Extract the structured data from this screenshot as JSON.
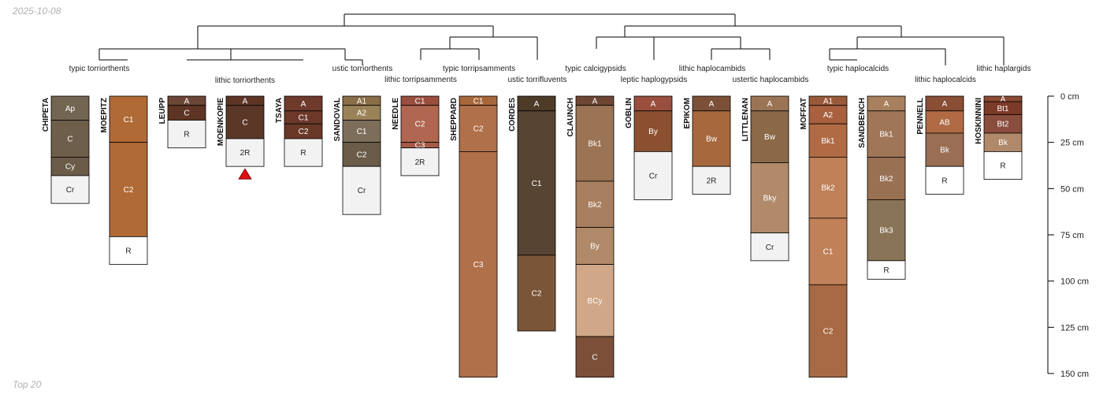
{
  "date_label": "2025-10-08",
  "footer_label": "Top 20",
  "chart_data": {
    "type": "soil-profile-sketch",
    "depth_axis": {
      "unit": "cm",
      "max": 150,
      "ticks": [
        {
          "value": 0,
          "label": "0 cm"
        },
        {
          "value": 25,
          "label": "25 cm"
        },
        {
          "value": 50,
          "label": "50 cm"
        },
        {
          "value": 75,
          "label": "75 cm"
        },
        {
          "value": 100,
          "label": "100 cm"
        },
        {
          "value": 125,
          "label": "125 cm"
        },
        {
          "value": 150,
          "label": "150 cm"
        }
      ]
    },
    "taxa": [
      "typic torriorthents",
      "lithic torriorthents",
      "ustic torriorthents",
      "lithic torripsamments",
      "typic torripsamments",
      "ustic torrifluvents",
      "typic calcigypsids",
      "leptic haplogypsids",
      "lithic haplocambids",
      "ustertic haplocambids",
      "typic haplocalcids",
      "lithic haplocalcids",
      "lithic haplargids"
    ],
    "profiles": [
      {
        "name": "CHIPETA",
        "horizons": [
          {
            "name": "Ap",
            "top": 0,
            "bottom": 13,
            "color": "#726551"
          },
          {
            "name": "C",
            "top": 13,
            "bottom": 33,
            "color": "#6e5f4a"
          },
          {
            "name": "Cy",
            "top": 33,
            "bottom": 43,
            "color": "#6a5c48"
          },
          {
            "name": "Cr",
            "top": 43,
            "bottom": 58,
            "color": "#f2f2f2"
          }
        ]
      },
      {
        "name": "MOEPITZ",
        "horizons": [
          {
            "name": "C1",
            "top": 0,
            "bottom": 25,
            "color": "#b06a35"
          },
          {
            "name": "C2",
            "top": 25,
            "bottom": 76,
            "color": "#b06a35"
          },
          {
            "name": "R",
            "top": 76,
            "bottom": 91,
            "color": "#ffffff"
          }
        ]
      },
      {
        "name": "LEUPP",
        "horizons": [
          {
            "name": "A",
            "top": 0,
            "bottom": 5,
            "color": "#6c4636"
          },
          {
            "name": "C",
            "top": 5,
            "bottom": 13,
            "color": "#5e3525"
          },
          {
            "name": "R",
            "top": 13,
            "bottom": 28,
            "color": "#f2f2f2"
          }
        ]
      },
      {
        "name": "MOENKOPIE",
        "horizons": [
          {
            "name": "A",
            "top": 0,
            "bottom": 5,
            "color": "#5e3525"
          },
          {
            "name": "C",
            "top": 5,
            "bottom": 23,
            "color": "#5b3727"
          },
          {
            "name": "2R",
            "top": 23,
            "bottom": 38,
            "color": "#f2f2f2"
          }
        ]
      },
      {
        "name": "TSAYA",
        "horizons": [
          {
            "name": "A",
            "top": 0,
            "bottom": 8,
            "color": "#6e3a2c"
          },
          {
            "name": "C1",
            "top": 8,
            "bottom": 15,
            "color": "#6c3829"
          },
          {
            "name": "C2",
            "top": 15,
            "bottom": 23,
            "color": "#6a3827"
          },
          {
            "name": "R",
            "top": 23,
            "bottom": 38,
            "color": "#f2f2f2"
          }
        ]
      },
      {
        "name": "SANDOVAL",
        "horizons": [
          {
            "name": "A1",
            "top": 0,
            "bottom": 5,
            "color": "#8a6e48"
          },
          {
            "name": "A2",
            "top": 5,
            "bottom": 13,
            "color": "#9a8258"
          },
          {
            "name": "C1",
            "top": 13,
            "bottom": 25,
            "color": "#7c6e5a"
          },
          {
            "name": "C2",
            "top": 25,
            "bottom": 38,
            "color": "#6a5c48"
          },
          {
            "name": "Cr",
            "top": 38,
            "bottom": 64,
            "color": "#f2f2f2"
          }
        ]
      },
      {
        "name": "NEEDLE",
        "horizons": [
          {
            "name": "C1",
            "top": 0,
            "bottom": 5,
            "color": "#9a4e3e"
          },
          {
            "name": "C2",
            "top": 5,
            "bottom": 25,
            "color": "#b06650"
          },
          {
            "name": "C3",
            "top": 25,
            "bottom": 28,
            "color": "#a65a48"
          },
          {
            "name": "2R",
            "top": 28,
            "bottom": 43,
            "color": "#f2f2f2"
          }
        ]
      },
      {
        "name": "SHEPPARD",
        "horizons": [
          {
            "name": "C1",
            "top": 0,
            "bottom": 5,
            "color": "#a8673a"
          },
          {
            "name": "C2",
            "top": 5,
            "bottom": 30,
            "color": "#b0704a"
          },
          {
            "name": "C3",
            "top": 30,
            "bottom": 152,
            "color": "#b0704a"
          }
        ]
      },
      {
        "name": "CORDES",
        "horizons": [
          {
            "name": "A",
            "top": 0,
            "bottom": 8,
            "color": "#4d3a27"
          },
          {
            "name": "C1",
            "top": 8,
            "bottom": 86,
            "color": "#574433"
          },
          {
            "name": "C2",
            "top": 86,
            "bottom": 127,
            "color": "#7a5538"
          }
        ]
      },
      {
        "name": "CLAUNCH",
        "horizons": [
          {
            "name": "A",
            "top": 0,
            "bottom": 5,
            "color": "#6e4634"
          },
          {
            "name": "Bk1",
            "top": 5,
            "bottom": 46,
            "color": "#9a7454"
          },
          {
            "name": "Bk2",
            "top": 46,
            "bottom": 71,
            "color": "#a87f5f"
          },
          {
            "name": "By",
            "top": 71,
            "bottom": 91,
            "color": "#b08a68"
          },
          {
            "name": "BCy",
            "top": 91,
            "bottom": 130,
            "color": "#d0a888"
          },
          {
            "name": "C",
            "top": 130,
            "bottom": 152,
            "color": "#7c5038"
          }
        ]
      },
      {
        "name": "GOBLIN",
        "horizons": [
          {
            "name": "A",
            "top": 0,
            "bottom": 8,
            "color": "#9a4e3e"
          },
          {
            "name": "By",
            "top": 8,
            "bottom": 30,
            "color": "#8a5030"
          },
          {
            "name": "Cr",
            "top": 30,
            "bottom": 56,
            "color": "#f2f2f2"
          }
        ]
      },
      {
        "name": "EPIKOM",
        "horizons": [
          {
            "name": "A",
            "top": 0,
            "bottom": 8,
            "color": "#7c5038"
          },
          {
            "name": "Bw",
            "top": 8,
            "bottom": 38,
            "color": "#a8683e"
          },
          {
            "name": "2R",
            "top": 38,
            "bottom": 53,
            "color": "#f2f2f2"
          }
        ]
      },
      {
        "name": "LITTLENAN",
        "horizons": [
          {
            "name": "A",
            "top": 0,
            "bottom": 8,
            "color": "#9a7454"
          },
          {
            "name": "Bw",
            "top": 8,
            "bottom": 36,
            "color": "#8a6848"
          },
          {
            "name": "Bky",
            "top": 36,
            "bottom": 74,
            "color": "#b08a6a"
          },
          {
            "name": "Cr",
            "top": 74,
            "bottom": 89,
            "color": "#f2f2f2"
          }
        ]
      },
      {
        "name": "MOFFAT",
        "horizons": [
          {
            "name": "A1",
            "top": 0,
            "bottom": 5,
            "color": "#9a5a3a"
          },
          {
            "name": "A2",
            "top": 5,
            "bottom": 15,
            "color": "#a8603e"
          },
          {
            "name": "Bk1",
            "top": 15,
            "bottom": 33,
            "color": "#b06a44"
          },
          {
            "name": "Bk2",
            "top": 33,
            "bottom": 66,
            "color": "#c08058"
          },
          {
            "name": "C1",
            "top": 66,
            "bottom": 102,
            "color": "#c08058"
          },
          {
            "name": "C2",
            "top": 102,
            "bottom": 152,
            "color": "#a86a44"
          }
        ]
      },
      {
        "name": "SANDBENCH",
        "horizons": [
          {
            "name": "A",
            "top": 0,
            "bottom": 8,
            "color": "#a8805e"
          },
          {
            "name": "Bk1",
            "top": 8,
            "bottom": 33,
            "color": "#a07658"
          },
          {
            "name": "Bk2",
            "top": 33,
            "bottom": 56,
            "color": "#987052"
          },
          {
            "name": "Bk3",
            "top": 56,
            "bottom": 89,
            "color": "#8a7458"
          },
          {
            "name": "R",
            "top": 89,
            "bottom": 99,
            "color": "#ffffff"
          }
        ]
      },
      {
        "name": "PENNELL",
        "horizons": [
          {
            "name": "A",
            "top": 0,
            "bottom": 8,
            "color": "#8a4e34"
          },
          {
            "name": "AB",
            "top": 8,
            "bottom": 20,
            "color": "#b06a44"
          },
          {
            "name": "Bk",
            "top": 20,
            "bottom": 38,
            "color": "#9a6e54"
          },
          {
            "name": "R",
            "top": 38,
            "bottom": 53,
            "color": "#ffffff"
          }
        ]
      },
      {
        "name": "HOSKINNINI",
        "horizons": [
          {
            "name": "A",
            "top": 0,
            "bottom": 3,
            "color": "#8a4a34"
          },
          {
            "name": "Bt1",
            "top": 3,
            "bottom": 10,
            "color": "#7c3a28"
          },
          {
            "name": "Bt2",
            "top": 10,
            "bottom": 20,
            "color": "#8a4e3e"
          },
          {
            "name": "Bk",
            "top": 20,
            "bottom": 30,
            "color": "#b0886a"
          },
          {
            "name": "R",
            "top": 30,
            "bottom": 45,
            "color": "#ffffff"
          }
        ]
      }
    ]
  }
}
